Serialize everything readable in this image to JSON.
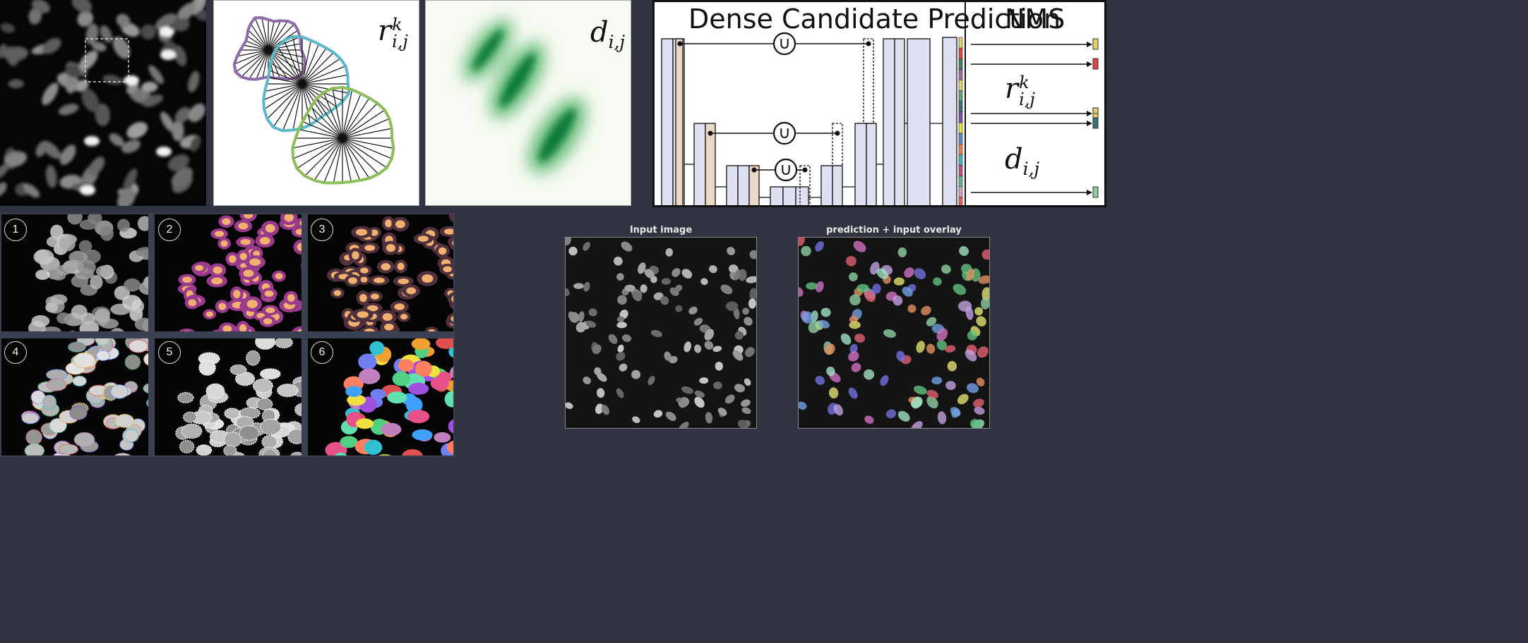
{
  "arch": {
    "header_dense": "Dense Candidate Prediction",
    "header_nms": "NMS",
    "union_symbol": "∪",
    "label_r": {
      "base": "r",
      "sub": "i,j",
      "sup": "k"
    },
    "label_d": {
      "base": "d",
      "sub": "i,j"
    }
  },
  "panels": {
    "rays_label": {
      "base": "r",
      "sub": "i,j",
      "sup": "k"
    },
    "dist_label": {
      "base": "d",
      "sub": "i,j"
    }
  },
  "steps": [
    "1",
    "2",
    "3",
    "4",
    "5",
    "6"
  ],
  "captions": {
    "input": "Input image",
    "overlay": "prediction + input overlay"
  },
  "colors": {
    "background": "#2f3440",
    "block": "#dde1f2",
    "block_accent": "#ecd8c6",
    "poly_purple": "#8e6aa8",
    "poly_cyan": "#5bb7c9",
    "poly_green": "#8cbe5a",
    "prob_green": "#0d7a3a"
  }
}
